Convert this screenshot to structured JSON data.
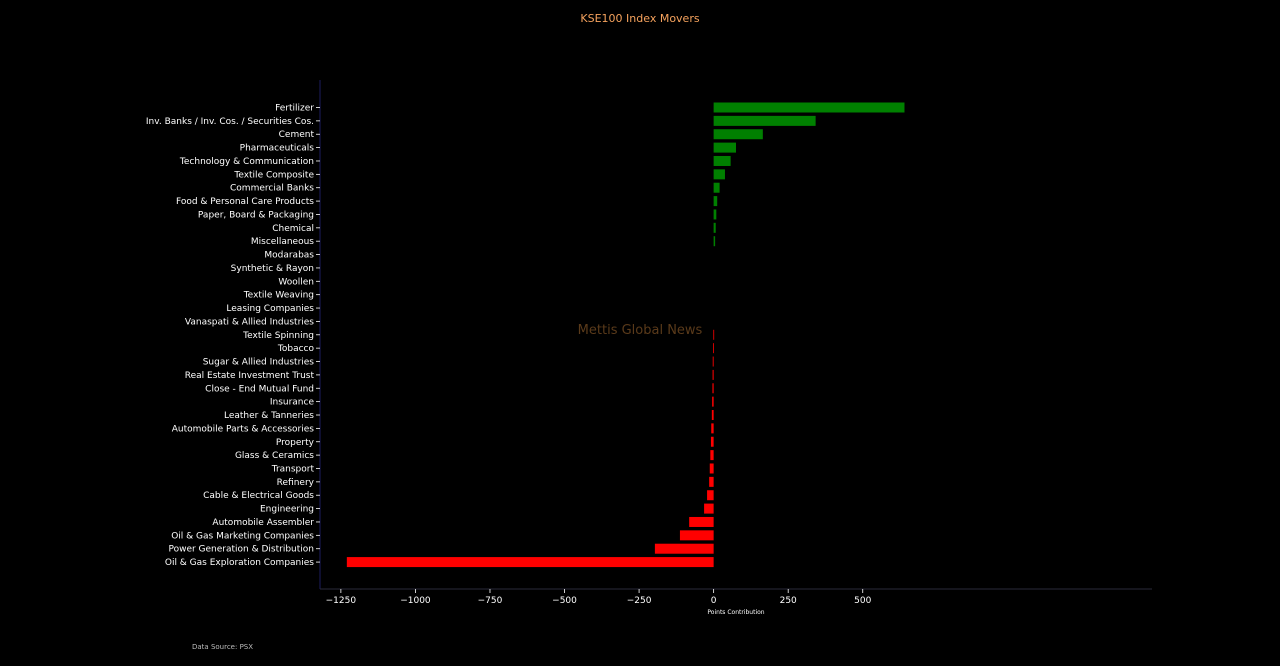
{
  "chart_data": {
    "type": "bar",
    "orientation": "horizontal",
    "title": "KSE100 Index Movers",
    "xlabel": "Points Contribution",
    "ylabel": "",
    "watermark": "Mettis Global News",
    "source_note": "Data Source: PSX",
    "xlim": [
      -1320,
      1470
    ],
    "xticks": [
      -1250,
      -1000,
      -750,
      -500,
      -250,
      0,
      250,
      500
    ],
    "xtick_labels": [
      "−1250",
      "−1000",
      "−750",
      "−500",
      "−250",
      "0",
      "250",
      "500"
    ],
    "categories": [
      "Fertilizer",
      "Inv. Banks / Inv. Cos. / Securities Cos.",
      "Cement",
      "Pharmaceuticals",
      "Technology & Communication",
      "Textile Composite",
      "Commercial Banks",
      "Food & Personal Care Products",
      "Paper, Board & Packaging",
      "Chemical",
      "Miscellaneous",
      "Modarabas",
      "Synthetic & Rayon",
      "Woollen",
      "Textile Weaving",
      "Leasing Companies",
      "Vanaspati & Allied Industries",
      "Textile Spinning",
      "Tobacco",
      "Sugar & Allied Industries",
      "Real Estate Investment Trust",
      "Close - End Mutual Fund",
      "Insurance",
      "Leather & Tanneries",
      "Automobile Parts & Accessories",
      "Property",
      "Glass & Ceramics",
      "Transport",
      "Refinery",
      "Cable & Electrical Goods",
      "Engineering",
      "Automobile Assembler",
      "Oil & Gas Marketing Companies",
      "Power Generation & Distribution",
      "Oil & Gas Exploration Companies"
    ],
    "values": [
      640,
      342,
      165,
      75,
      57,
      38,
      20,
      12,
      9,
      7,
      5,
      0,
      0,
      0,
      0,
      0,
      0,
      -1,
      -1.5,
      -3,
      -3.5,
      -4,
      -5,
      -6,
      -8,
      -9,
      -11,
      -13,
      -15,
      -22,
      -32,
      -82,
      -113,
      -197,
      -1230
    ],
    "colors": {
      "positive": "#008000",
      "negative": "#ff0000",
      "title": "#f5a25d",
      "watermark": "#5a3a1a",
      "text": "#ffffff",
      "axis_left": "#1c1c5e",
      "axis_bottom": "#2a2a3a",
      "note": "#bbbbbb"
    }
  }
}
